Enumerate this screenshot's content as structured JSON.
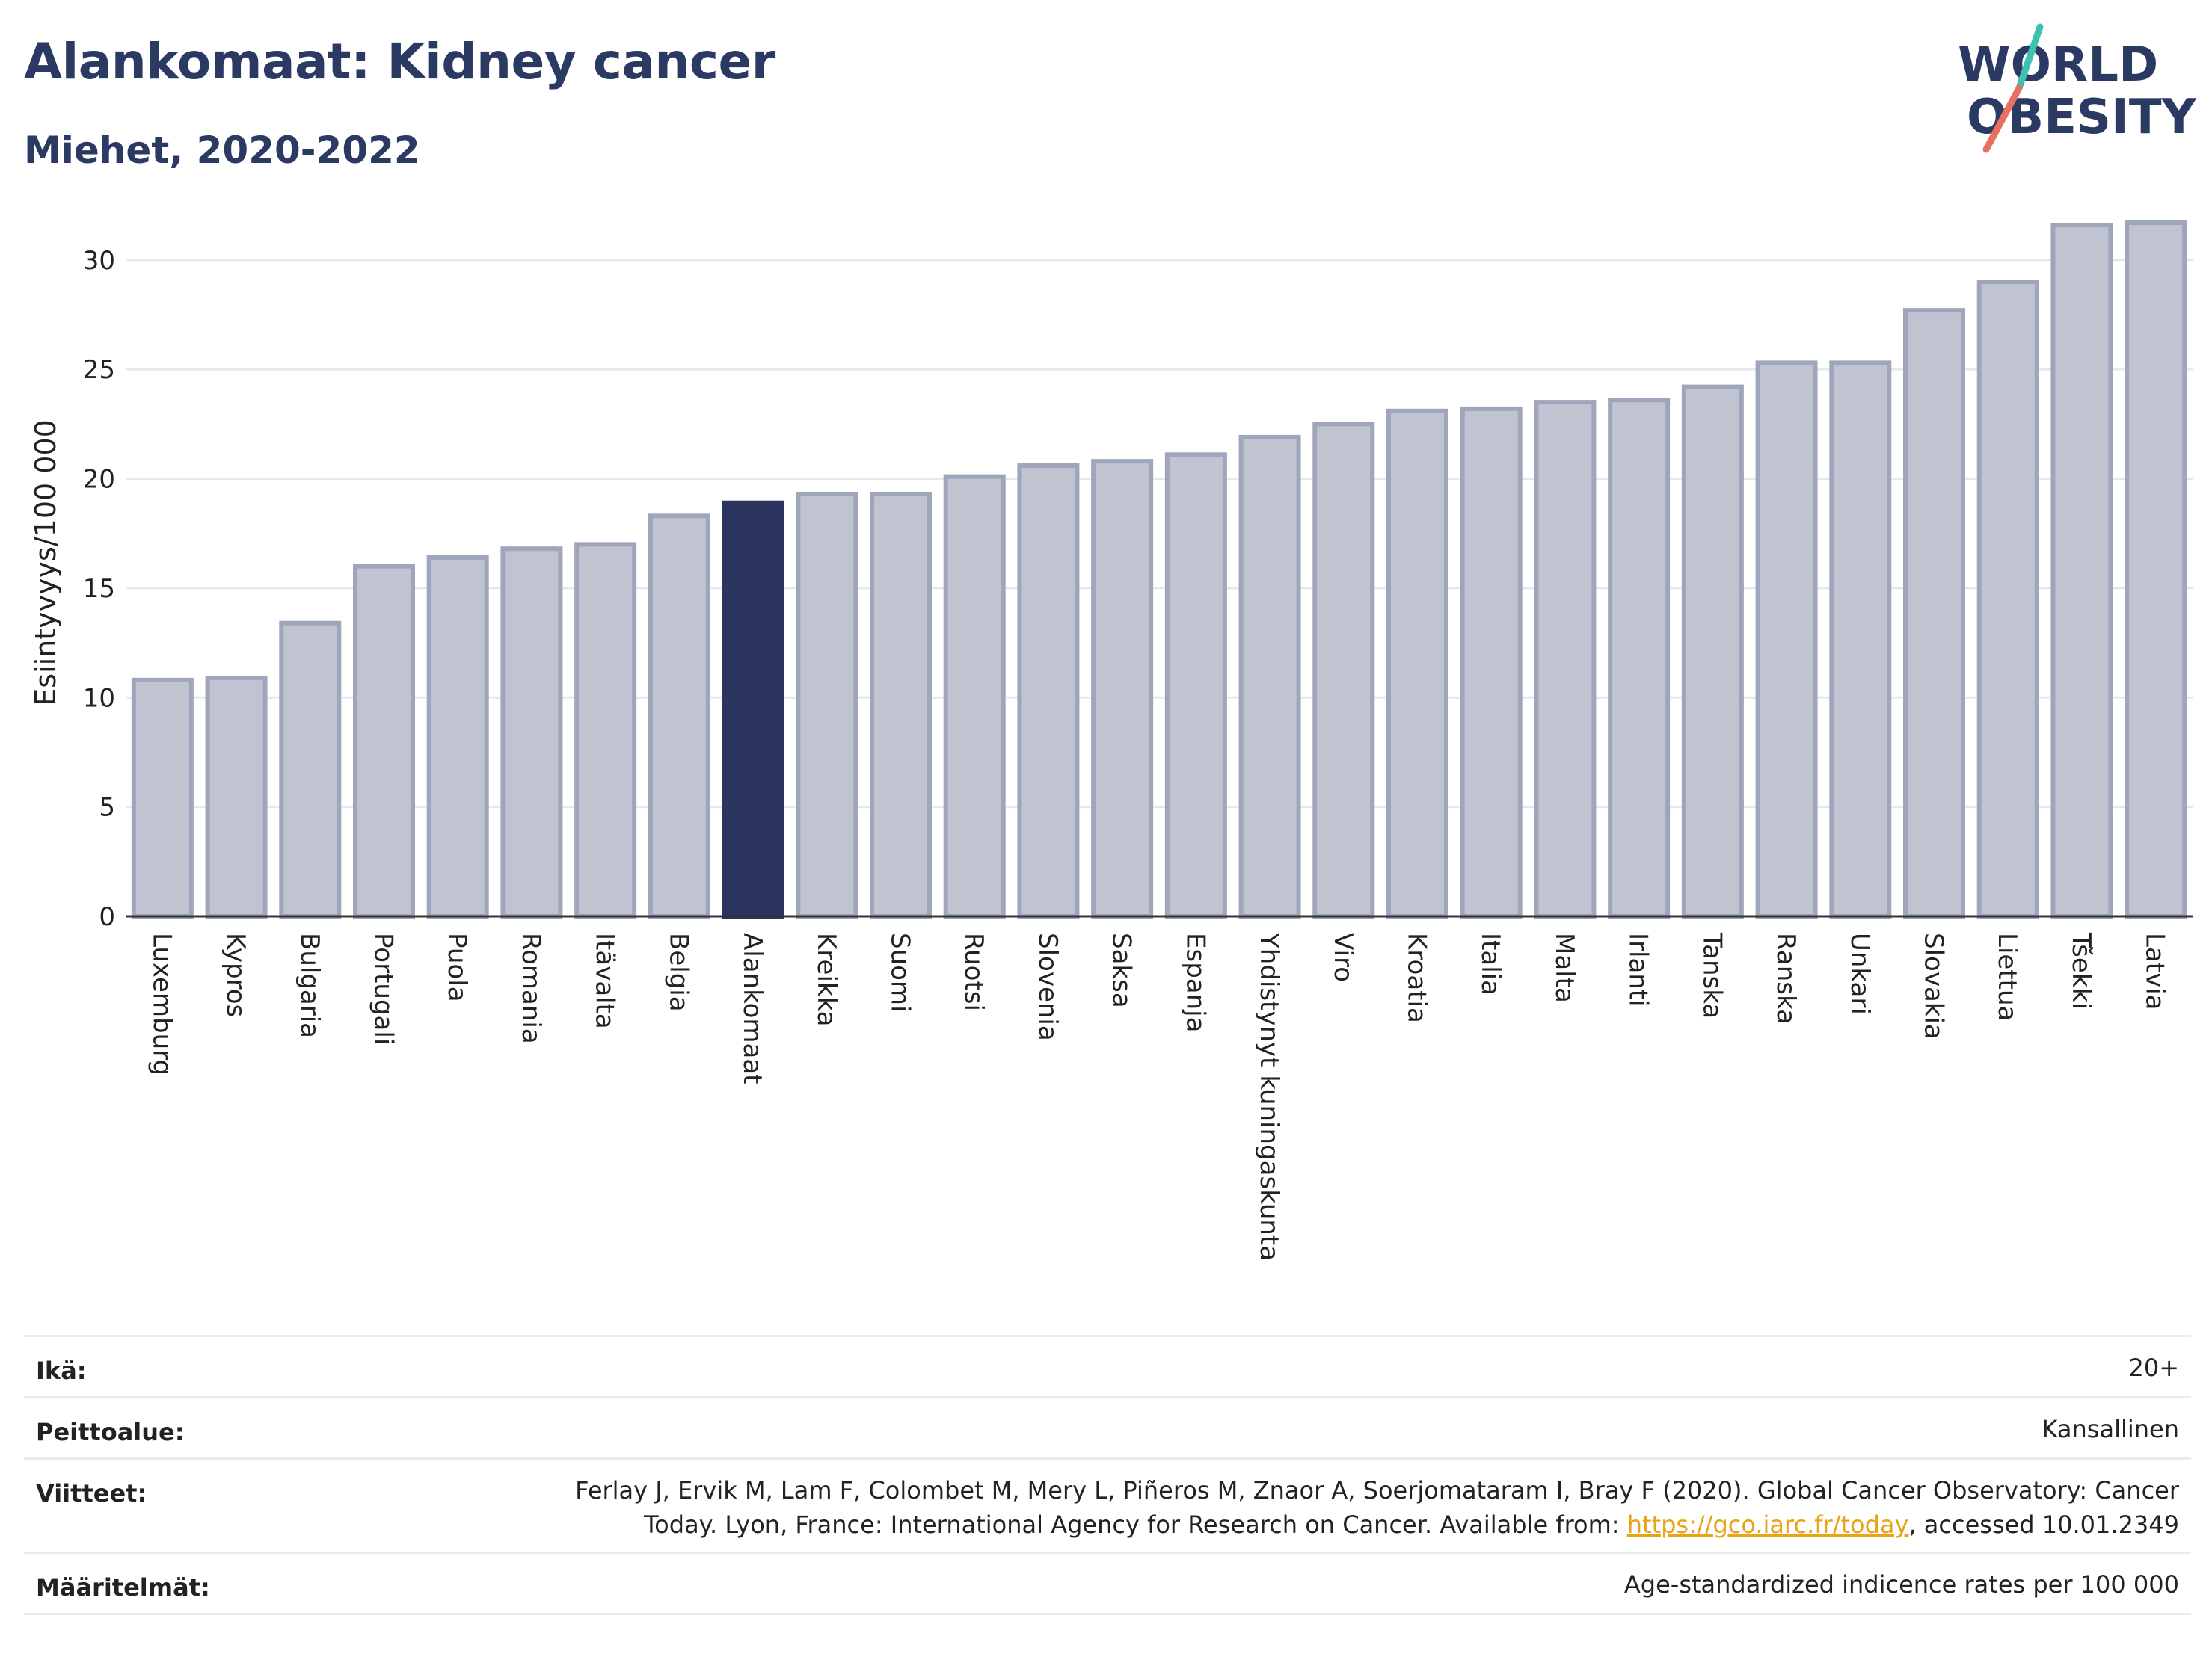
{
  "header": {
    "title": "Alankomaat: Kidney cancer",
    "subtitle": "Miehet, 2020-2022"
  },
  "logo": {
    "line1": "WORLD",
    "line2": "OBESITY",
    "accent_colors": [
      "#3fc1b0",
      "#e8705e"
    ]
  },
  "chart_data": {
    "type": "bar",
    "ylabel": "Esiintyvyys/100 000",
    "xlabel": "",
    "ylim": [
      0,
      33
    ],
    "yticks": [
      0,
      5,
      10,
      15,
      20,
      25,
      30
    ],
    "grid": true,
    "highlight": "Alankomaat",
    "colors": {
      "default": "#c0c4d1",
      "default_stroke": "#9fa5bb",
      "highlight": "#2b3560"
    },
    "categories": [
      "Luxemburg",
      "Kypros",
      "Bulgaria",
      "Portugali",
      "Puola",
      "Romania",
      "Itävalta",
      "Belgia",
      "Alankomaat",
      "Kreikka",
      "Suomi",
      "Ruotsi",
      "Slovenia",
      "Saksa",
      "Espanja",
      "Yhdistynyt kuningaskunta",
      "Viro",
      "Kroatia",
      "Italia",
      "Malta",
      "Irlanti",
      "Tanska",
      "Ranska",
      "Unkari",
      "Slovakia",
      "Liettua",
      "Tšekki",
      "Latvia"
    ],
    "values": [
      10.8,
      10.9,
      13.4,
      16.0,
      16.4,
      16.8,
      17.0,
      18.3,
      18.9,
      19.3,
      19.3,
      20.1,
      20.6,
      20.8,
      21.1,
      21.9,
      22.5,
      23.1,
      23.2,
      23.5,
      23.6,
      24.2,
      25.3,
      25.3,
      27.7,
      29.0,
      31.6,
      31.7
    ]
  },
  "meta": {
    "rows": [
      {
        "key": "Ikä:",
        "value": "20+"
      },
      {
        "key": "Peittoalue:",
        "value": "Kansallinen"
      },
      {
        "key": "Viitteet:",
        "value_line1": "Ferlay J, Ervik M, Lam F, Colombet M, Mery L, Piñeros M, Znaor A, Soerjomataram I, Bray F (2020). Global Cancer Observatory: Cancer",
        "value_line2_pre": "Today. Lyon, France: International Agency for Research on Cancer. Available from: ",
        "value_link": "https://gco.iarc.fr/today",
        "value_line2_post": ", accessed 10.01.2349"
      },
      {
        "key": "Määritelmät:",
        "value": "Age-standardized indicence rates per 100 000"
      }
    ]
  }
}
